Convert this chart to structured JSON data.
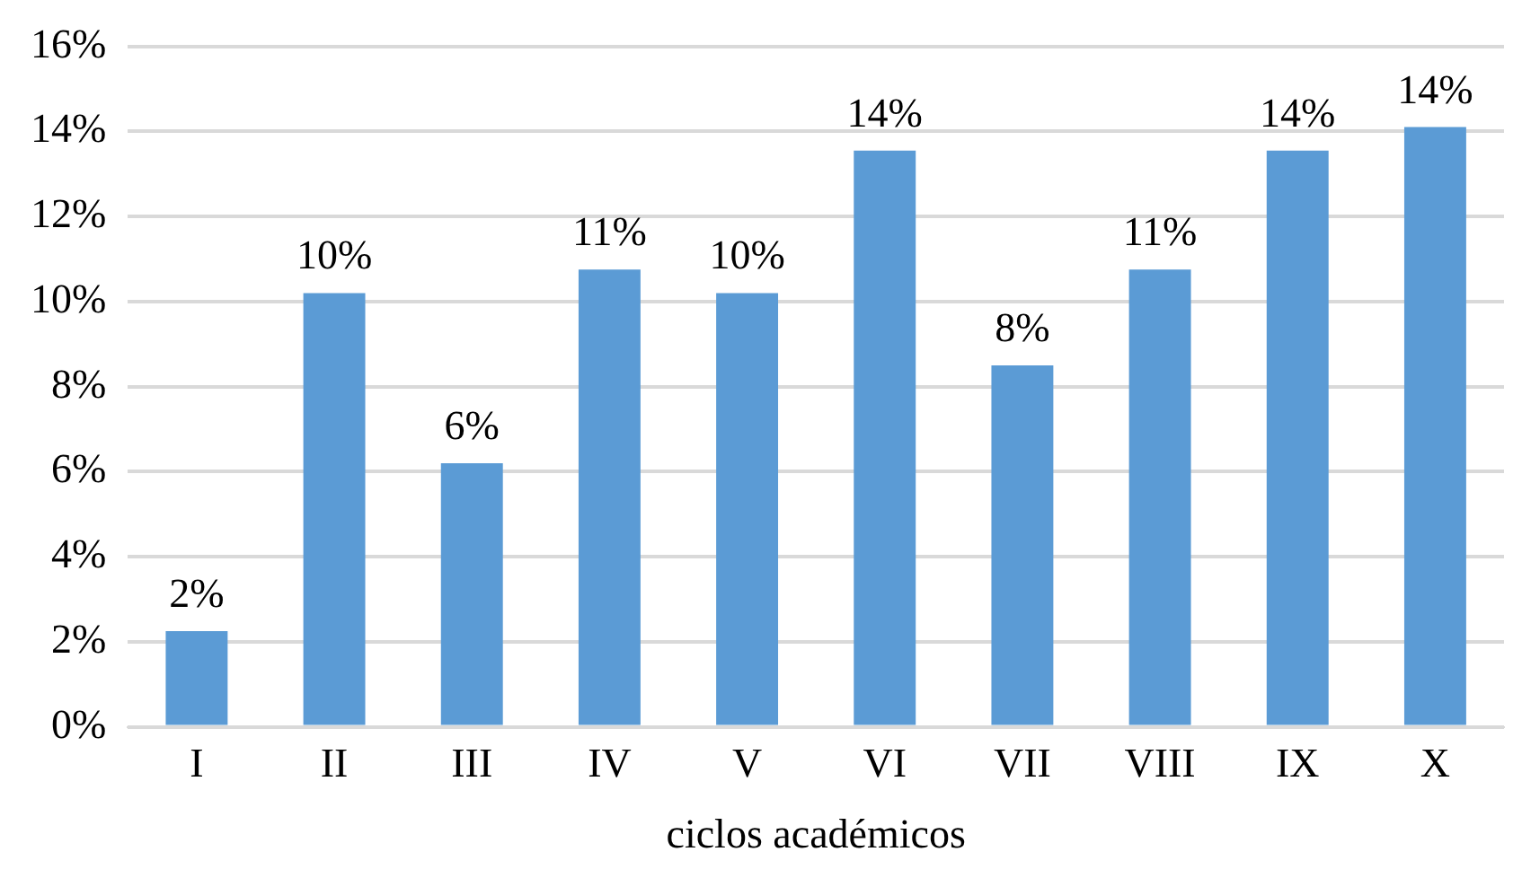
{
  "chart_data": {
    "type": "bar",
    "xlabel": "ciclos académicos",
    "categories": [
      "I",
      "II",
      "III",
      "IV",
      "V",
      "VI",
      "VII",
      "VIII",
      "IX",
      "X"
    ],
    "values": [
      2.25,
      10.2,
      6.2,
      10.75,
      10.2,
      13.55,
      8.5,
      10.75,
      13.55,
      14.1
    ],
    "value_labels": [
      "2%",
      "10%",
      "6%",
      "11%",
      "10%",
      "14%",
      "8%",
      "11%",
      "14%",
      "14%"
    ],
    "color": "#5b9bd5",
    "ylim": [
      0,
      16
    ],
    "yticks": [
      {
        "value": 0,
        "label": "0%"
      },
      {
        "value": 2,
        "label": "2%"
      },
      {
        "value": 4,
        "label": "4%"
      },
      {
        "value": 6,
        "label": "6%"
      },
      {
        "value": 8,
        "label": "8%"
      },
      {
        "value": 10,
        "label": "10%"
      },
      {
        "value": 12,
        "label": "12%"
      },
      {
        "value": 14,
        "label": "14%"
      },
      {
        "value": 16,
        "label": "16%"
      }
    ],
    "grid": "y",
    "legend": false
  }
}
